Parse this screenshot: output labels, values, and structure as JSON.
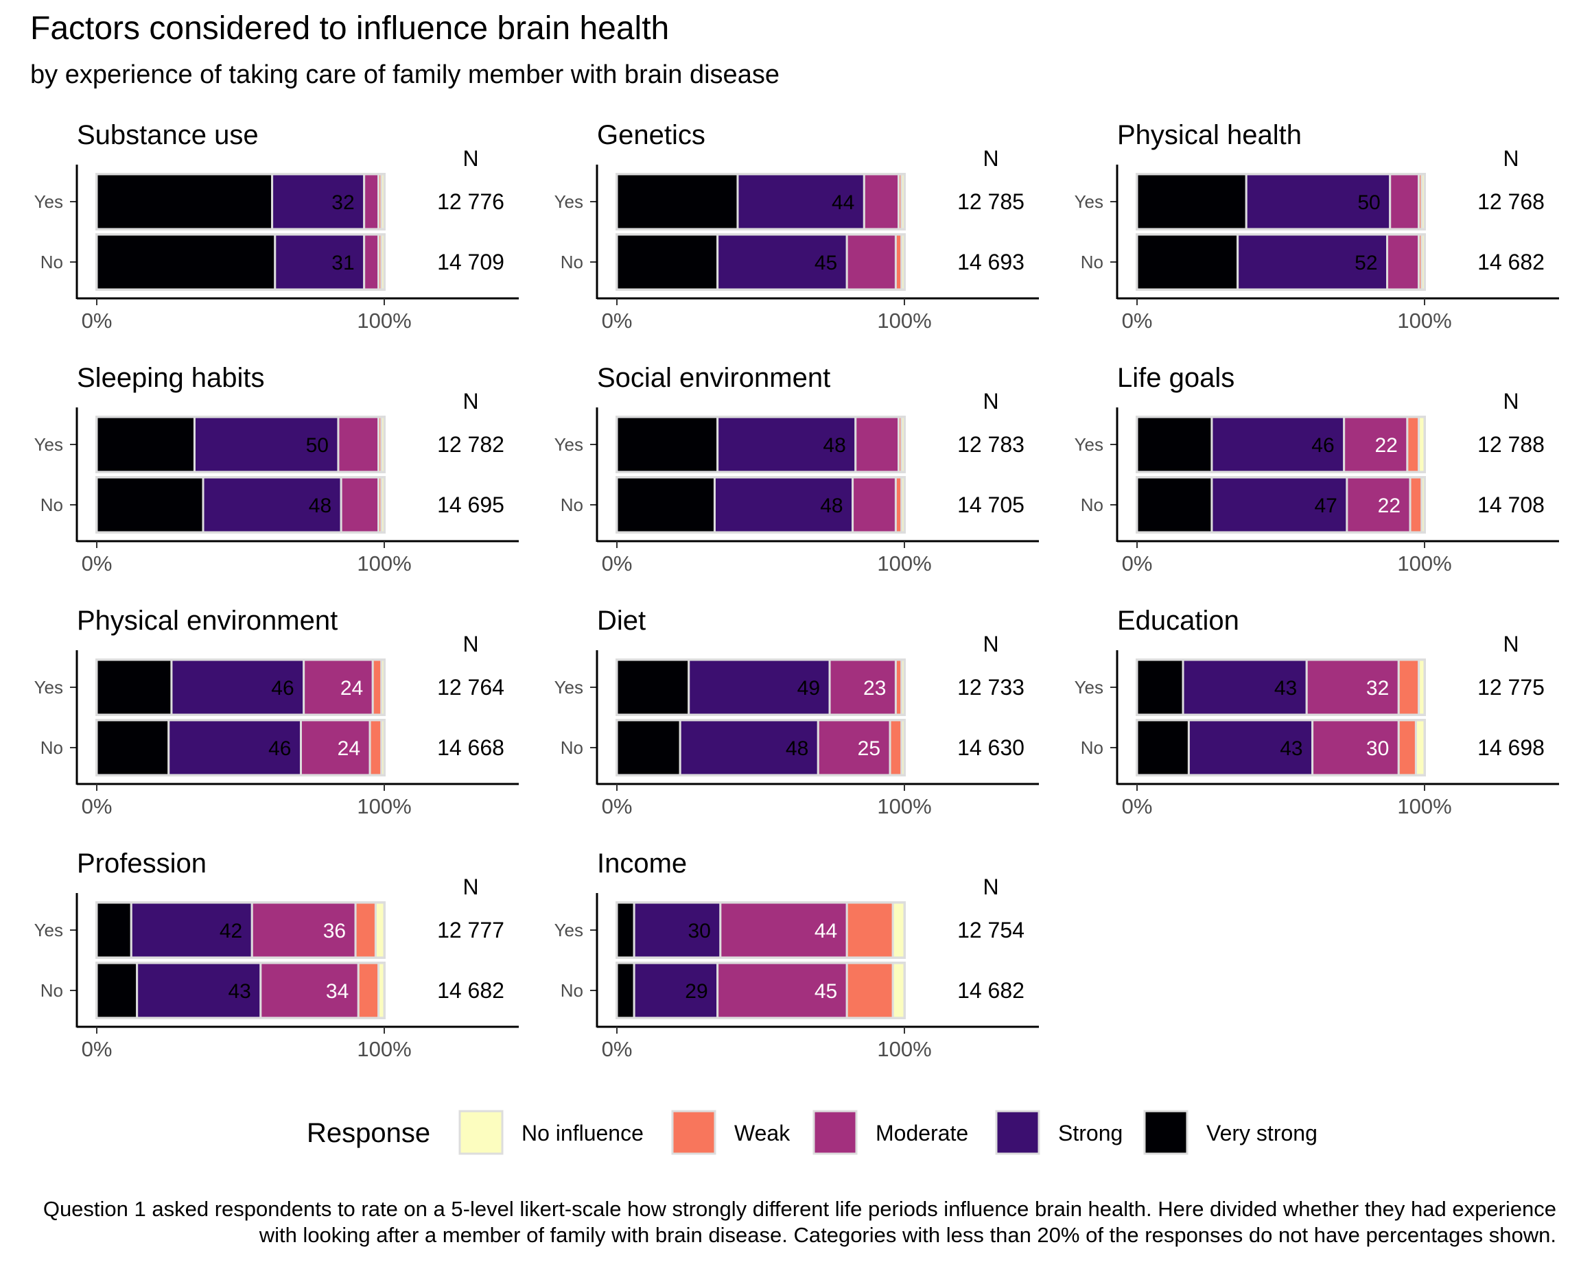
{
  "title": "Factors considered to influence brain health",
  "subtitle": "by experience of taking care of family member with brain disease",
  "caption": "Question 1 asked respondents to rate on a 5-level likert-scale how strongly different life periods influence brain health. Here divided whether they had experience with looking after a member of family with brain disease. Categories with less than 20% of the responses do not have percentages shown.",
  "chart_data": {
    "type": "bar",
    "orientation": "horizontal",
    "stacked": "percent",
    "facets": [
      "Substance use",
      "Genetics",
      "Physical health",
      "Sleeping habits",
      "Social environment",
      "Life goals",
      "Physical environment",
      "Diet",
      "Education",
      "Profession",
      "Income"
    ],
    "categories": [
      "Yes",
      "No"
    ],
    "response_levels": [
      "No influence",
      "Weak",
      "Moderate",
      "Strong",
      "Very strong"
    ],
    "n_header": "N",
    "x_ticks": [
      "0%",
      "100%"
    ],
    "xlim": [
      0,
      1.55
    ],
    "legend": {
      "title": "Response",
      "position": "bottom"
    },
    "colors": {
      "No influence": "#FCFDBF",
      "Weak": "#F8765C",
      "Moderate": "#A3307E",
      "Strong": "#3C0F70",
      "Very strong": "#000004",
      "bar_outline": "#DDDDDD"
    },
    "panels": [
      {
        "facet": "Substance use",
        "rows": [
          {
            "group": "Yes",
            "n": "12 776",
            "values": {
              "Very strong": 61,
              "Strong": 32,
              "Moderate": 5,
              "Weak": 1,
              "No influence": 1
            }
          },
          {
            "group": "No",
            "n": "14 709",
            "values": {
              "Very strong": 62,
              "Strong": 31,
              "Moderate": 5,
              "Weak": 1,
              "No influence": 1
            }
          }
        ]
      },
      {
        "facet": "Genetics",
        "rows": [
          {
            "group": "Yes",
            "n": "12 785",
            "values": {
              "Very strong": 42,
              "Strong": 44,
              "Moderate": 12,
              "Weak": 1,
              "No influence": 1
            }
          },
          {
            "group": "No",
            "n": "14 693",
            "values": {
              "Very strong": 35,
              "Strong": 45,
              "Moderate": 17,
              "Weak": 2,
              "No influence": 1
            }
          }
        ]
      },
      {
        "facet": "Physical health",
        "rows": [
          {
            "group": "Yes",
            "n": "12 768",
            "values": {
              "Very strong": 38,
              "Strong": 50,
              "Moderate": 10,
              "Weak": 1,
              "No influence": 1
            }
          },
          {
            "group": "No",
            "n": "14 682",
            "values": {
              "Very strong": 35,
              "Strong": 52,
              "Moderate": 11,
              "Weak": 1,
              "No influence": 1
            }
          }
        ]
      },
      {
        "facet": "Sleeping habits",
        "rows": [
          {
            "group": "Yes",
            "n": "12 782",
            "values": {
              "Very strong": 34,
              "Strong": 50,
              "Moderate": 14,
              "Weak": 1,
              "No influence": 1
            }
          },
          {
            "group": "No",
            "n": "14 695",
            "values": {
              "Very strong": 37,
              "Strong": 48,
              "Moderate": 13,
              "Weak": 1,
              "No influence": 1
            }
          }
        ]
      },
      {
        "facet": "Social environment",
        "rows": [
          {
            "group": "Yes",
            "n": "12 783",
            "values": {
              "Very strong": 35,
              "Strong": 48,
              "Moderate": 15,
              "Weak": 1,
              "No influence": 1
            }
          },
          {
            "group": "No",
            "n": "14 705",
            "values": {
              "Very strong": 34,
              "Strong": 48,
              "Moderate": 15,
              "Weak": 2,
              "No influence": 1
            }
          }
        ]
      },
      {
        "facet": "Life goals",
        "rows": [
          {
            "group": "Yes",
            "n": "12 788",
            "values": {
              "Very strong": 26,
              "Strong": 46,
              "Moderate": 22,
              "Weak": 4,
              "No influence": 2
            }
          },
          {
            "group": "No",
            "n": "14 708",
            "values": {
              "Very strong": 26,
              "Strong": 47,
              "Moderate": 22,
              "Weak": 4,
              "No influence": 1
            }
          }
        ]
      },
      {
        "facet": "Physical environment",
        "rows": [
          {
            "group": "Yes",
            "n": "12 764",
            "values": {
              "Very strong": 26,
              "Strong": 46,
              "Moderate": 24,
              "Weak": 3,
              "No influence": 1
            }
          },
          {
            "group": "No",
            "n": "14 668",
            "values": {
              "Very strong": 25,
              "Strong": 46,
              "Moderate": 24,
              "Weak": 4,
              "No influence": 1
            }
          }
        ]
      },
      {
        "facet": "Diet",
        "rows": [
          {
            "group": "Yes",
            "n": "12 733",
            "values": {
              "Very strong": 25,
              "Strong": 49,
              "Moderate": 23,
              "Weak": 2,
              "No influence": 1
            }
          },
          {
            "group": "No",
            "n": "14 630",
            "values": {
              "Very strong": 22,
              "Strong": 48,
              "Moderate": 25,
              "Weak": 4,
              "No influence": 1
            }
          }
        ]
      },
      {
        "facet": "Education",
        "rows": [
          {
            "group": "Yes",
            "n": "12 775",
            "values": {
              "Very strong": 16,
              "Strong": 43,
              "Moderate": 32,
              "Weak": 7,
              "No influence": 2
            }
          },
          {
            "group": "No",
            "n": "14 698",
            "values": {
              "Very strong": 18,
              "Strong": 43,
              "Moderate": 30,
              "Weak": 6,
              "No influence": 3
            }
          }
        ]
      },
      {
        "facet": "Profession",
        "rows": [
          {
            "group": "Yes",
            "n": "12 777",
            "values": {
              "Very strong": 12,
              "Strong": 42,
              "Moderate": 36,
              "Weak": 7,
              "No influence": 3
            }
          },
          {
            "group": "No",
            "n": "14 682",
            "values": {
              "Very strong": 14,
              "Strong": 43,
              "Moderate": 34,
              "Weak": 7,
              "No influence": 2
            }
          }
        ]
      },
      {
        "facet": "Income",
        "rows": [
          {
            "group": "Yes",
            "n": "12 754",
            "values": {
              "Very strong": 6,
              "Strong": 30,
              "Moderate": 44,
              "Weak": 16,
              "No influence": 4
            }
          },
          {
            "group": "No",
            "n": "14 682",
            "values": {
              "Very strong": 6,
              "Strong": 29,
              "Moderate": 45,
              "Weak": 16,
              "No influence": 4
            }
          }
        ]
      }
    ]
  }
}
